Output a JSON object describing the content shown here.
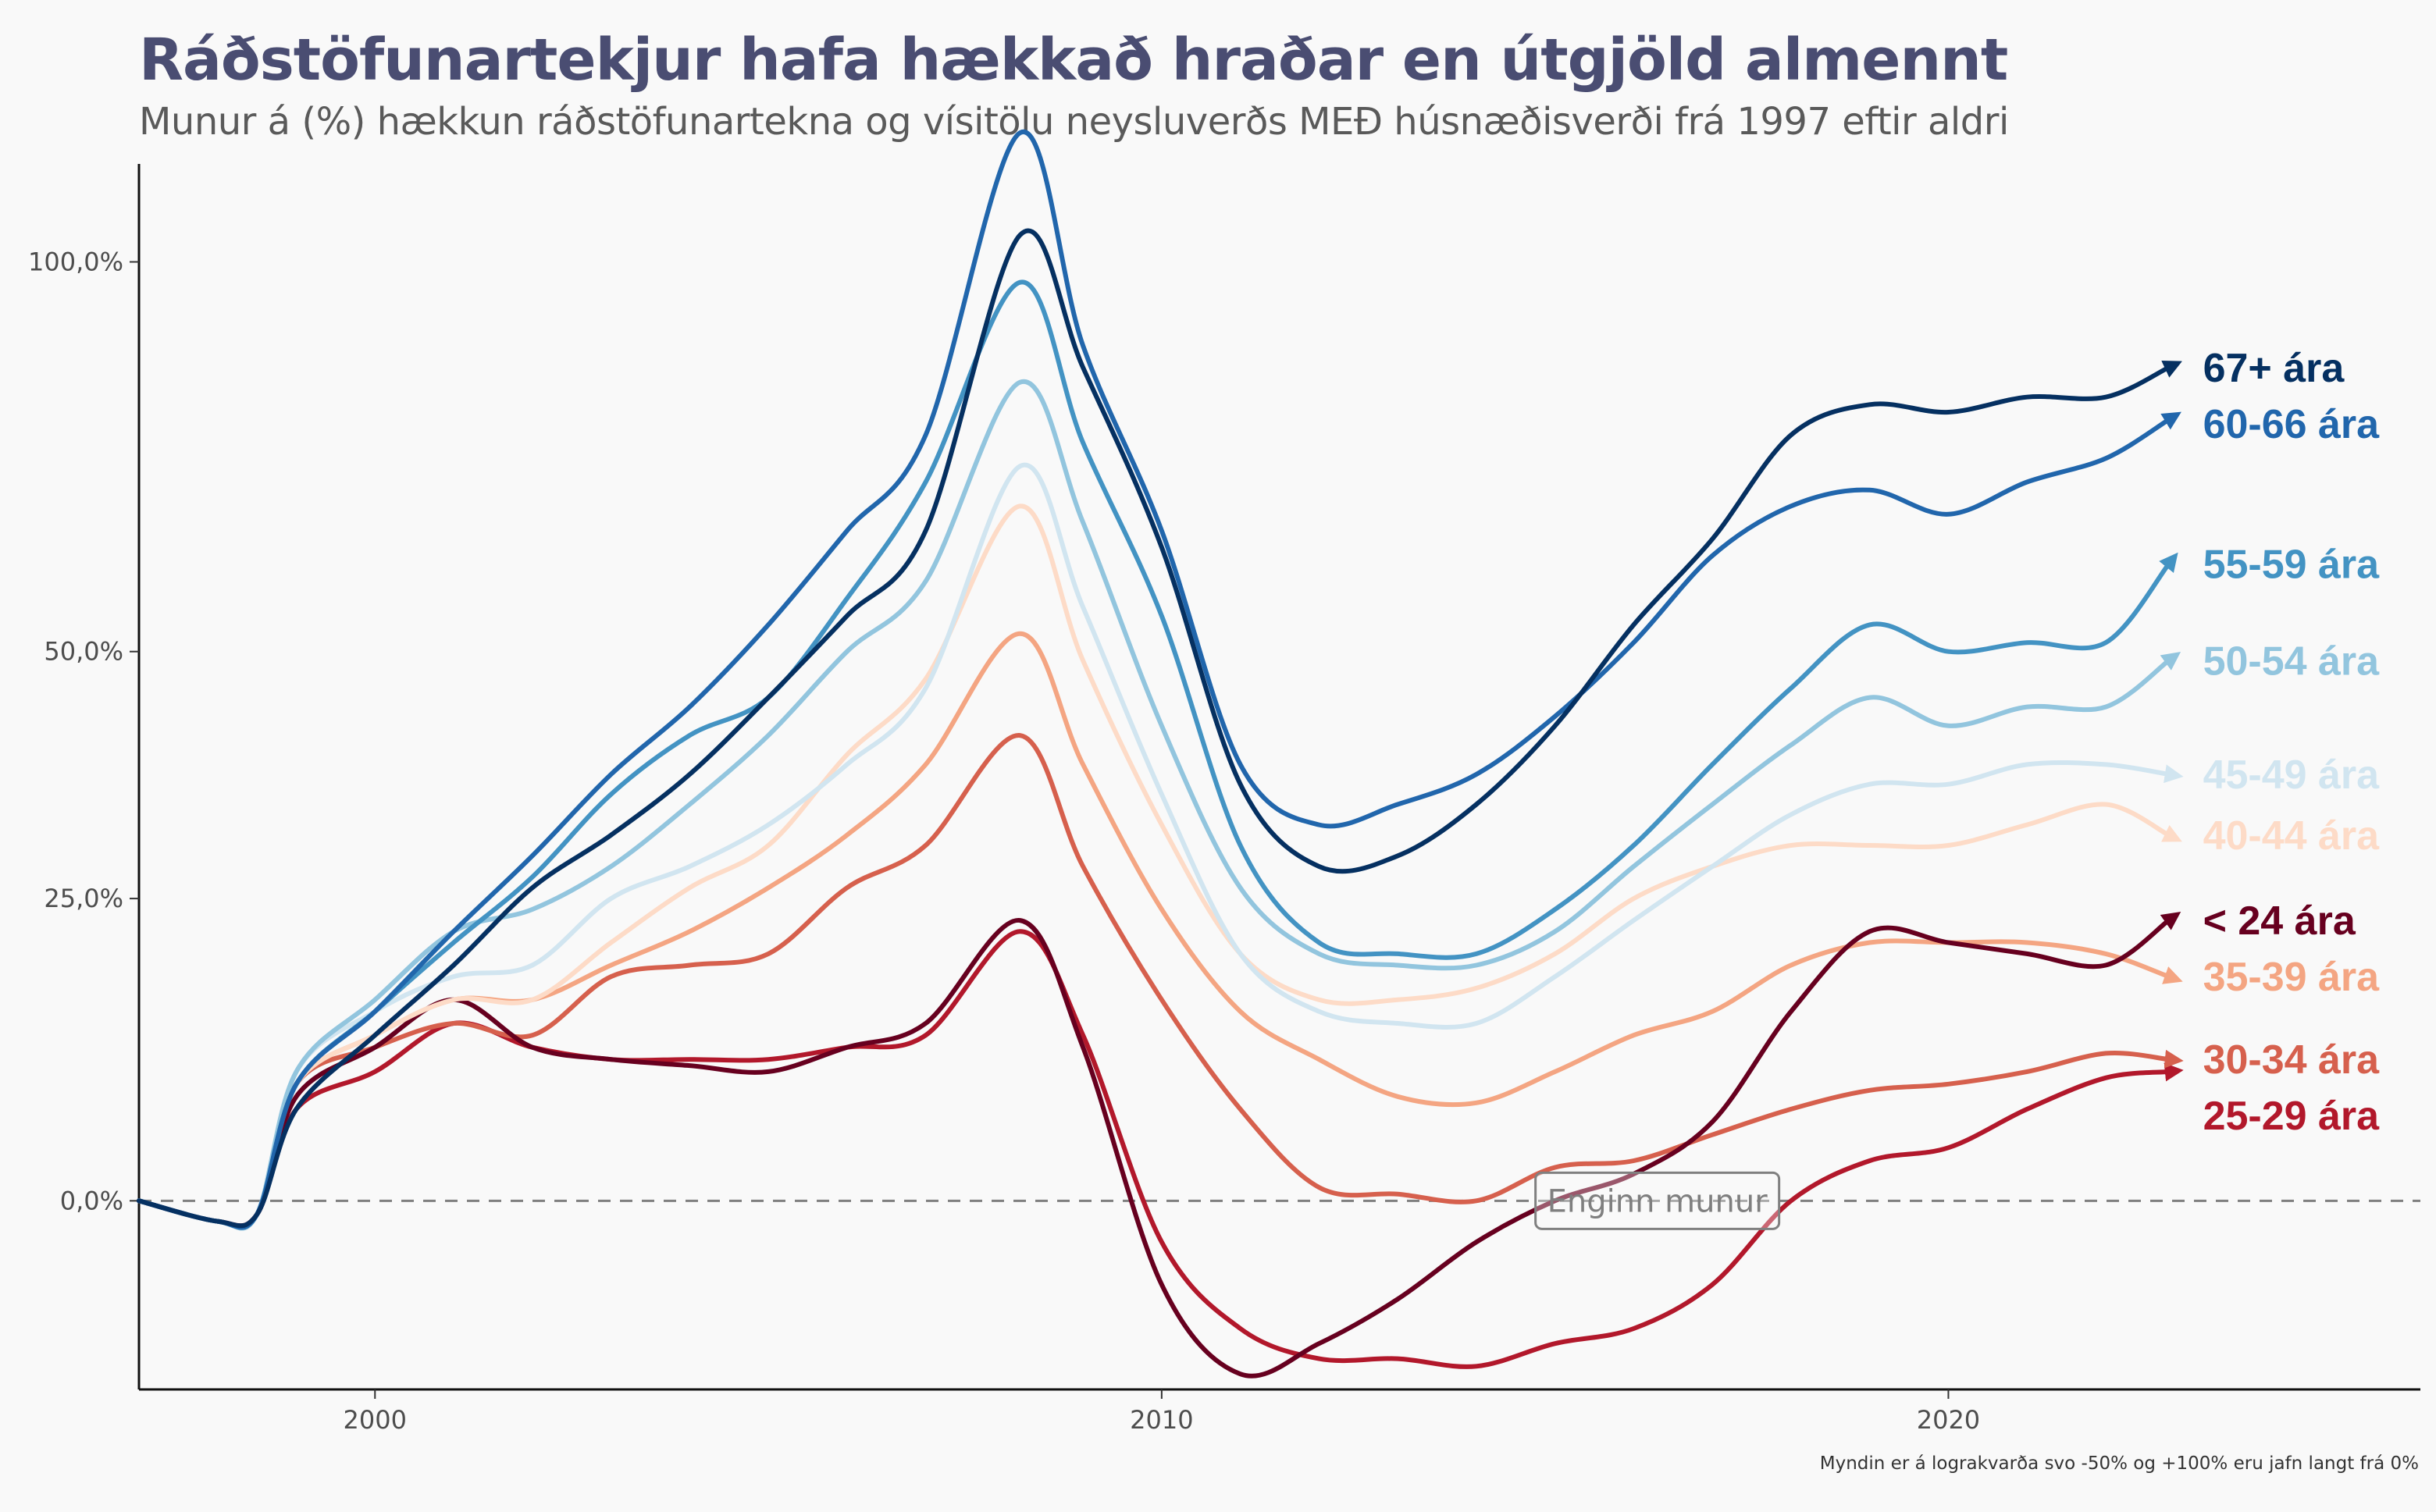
{
  "title": "Ráðstöfunartekjur hafa hækkað hraðar en útgjöld almennt",
  "subtitle": "Munur á (%) hækkun ráðstöfunartekna og vísitölu neysluverðs MEÐ húsnæðisverði frá 1997 eftir aldri",
  "caption": "Myndin er á lograkvarða svo -50% og +100% eru jafn langt frá 0%",
  "chart_data": {
    "type": "line",
    "title": "Ráðstöfunartekjur hafa hækkað hraðar en útgjöld almennt",
    "subtitle": "Munur á (%) hækkun ráðstöfunartekna og vísitölu neysluverðs MEÐ húsnæðisverði frá 1997 eftir aldri",
    "xlabel": "",
    "ylabel": "",
    "y_scale": "log",
    "xlim": [
      1997,
      2026
    ],
    "ylim": [
      -13,
      115
    ],
    "x_ticks": [
      2000,
      2010,
      2020
    ],
    "x_tick_labels": [
      "2000",
      "2010",
      "2020"
    ],
    "y_ticks": [
      0,
      25,
      50,
      100
    ],
    "y_tick_labels": [
      "0,0%",
      "25,0%",
      "50,0%",
      "100,0%"
    ],
    "grid": false,
    "legend": "direct labels at right end of lines",
    "reference_line": {
      "y": 0,
      "style": "dashed"
    },
    "annotation": {
      "text": "Enginn munur",
      "x": 2016.3,
      "y": 0
    },
    "x": [
      1997.0,
      1998.0,
      1998.5,
      1999.0,
      2000.0,
      2001.0,
      2002.0,
      2003.0,
      2004.0,
      2005.0,
      2006.0,
      2007.0,
      2008.2,
      2009.0,
      2010.0,
      2011.0,
      2012.0,
      2013.0,
      2014.0,
      2015.0,
      2016.0,
      2017.0,
      2018.0,
      2019.0,
      2020.0,
      2021.0,
      2022.0,
      2022.8
    ],
    "series": [
      {
        "name": "67+ ára",
        "color": "#053061",
        "values": [
          0,
          -1.5,
          -1,
          7,
          13,
          19,
          26,
          31,
          37,
          45,
          54,
          64,
          104,
          85,
          62,
          36,
          28,
          29,
          34,
          42,
          53,
          63,
          76,
          80,
          79,
          81,
          81,
          85
        ]
      },
      {
        "name": "60-66 ára",
        "color": "#2166ac",
        "values": [
          0,
          -1.5,
          -1,
          9,
          15,
          22,
          29,
          37,
          44,
          53,
          64,
          76,
          120,
          88,
          64,
          38,
          32,
          34,
          37,
          43,
          51,
          61,
          67,
          69,
          66,
          70,
          73,
          78
        ]
      },
      {
        "name": "55-59 ára",
        "color": "#4393c3",
        "values": [
          0,
          -1.5,
          -1,
          9,
          15,
          21,
          27,
          35,
          41,
          45,
          56,
          70,
          97,
          75,
          54,
          30,
          21,
          20,
          20,
          24,
          30,
          38,
          46,
          53,
          50,
          51,
          51,
          60
        ]
      },
      {
        "name": "50-54 ára",
        "color": "#92c5de",
        "values": [
          0,
          -1.5,
          -1,
          10,
          16,
          22,
          24,
          28,
          34,
          41,
          50,
          58,
          83,
          65,
          42,
          26,
          20,
          19,
          19,
          22,
          28,
          34,
          40,
          45,
          42,
          44,
          44,
          49
        ]
      },
      {
        "name": "45-49 ára",
        "color": "#d1e5f0",
        "values": [
          0,
          -1.5,
          -1,
          10,
          15,
          18,
          19,
          25,
          28,
          32,
          38,
          46,
          72,
          55,
          35,
          20,
          15,
          14,
          14,
          18,
          23,
          28,
          33,
          36,
          36,
          38,
          38,
          37
        ]
      },
      {
        "name": "40-44 ára",
        "color": "#fddbc7",
        "values": [
          0,
          -1.5,
          -1,
          9,
          13,
          16,
          16,
          21,
          26,
          30,
          39,
          47,
          67,
          49,
          32,
          20,
          16,
          16,
          17,
          20,
          25,
          28,
          30,
          30,
          30,
          32,
          34,
          31
        ]
      },
      {
        "name": "< 24 ára",
        "color": "#67001f",
        "values": [
          0,
          -1.5,
          -1,
          8,
          12,
          16,
          12,
          11,
          10.5,
          10,
          12,
          14,
          23,
          12,
          -6,
          -12,
          -10,
          -7,
          -3,
          0,
          2,
          6,
          15,
          22,
          21,
          20,
          19,
          23
        ]
      },
      {
        "name": "35-39 ára",
        "color": "#f4a582",
        "values": [
          0,
          -1.5,
          -1,
          9,
          13,
          16,
          16,
          19,
          22,
          26,
          31,
          38,
          52,
          38,
          24,
          15,
          11,
          8,
          7.5,
          10,
          13,
          15,
          19,
          21,
          21,
          21,
          20,
          18
        ]
      },
      {
        "name": "30-34 ára",
        "color": "#d6604d",
        "values": [
          0,
          -1.5,
          -1,
          9,
          12,
          14,
          13,
          18,
          19,
          20,
          26,
          30,
          41,
          28,
          16,
          7,
          1,
          0.5,
          0,
          2.5,
          3,
          5,
          7,
          8.5,
          9,
          10,
          11.5,
          11
        ]
      },
      {
        "name": "25-29 ára",
        "color": "#b2182b",
        "values": [
          0,
          -1.5,
          -1,
          7,
          10,
          14,
          12,
          11,
          11,
          11,
          12,
          13,
          22,
          13,
          -3,
          -9,
          -11,
          -11,
          -11.5,
          -10,
          -9,
          -6,
          0,
          3,
          4,
          7,
          9.5,
          10
        ]
      }
    ],
    "end_labels": [
      {
        "text": "67+ ára",
        "color": "#053061"
      },
      {
        "text": "60-66 ára",
        "color": "#2166ac"
      },
      {
        "text": "55-59 ára",
        "color": "#4393c3"
      },
      {
        "text": "50-54 ára",
        "color": "#92c5de"
      },
      {
        "text": "45-49 ára",
        "color": "#d1e5f0"
      },
      {
        "text": "40-44 ára",
        "color": "#fddbc7"
      },
      {
        "text": "< 24 ára",
        "color": "#67001f"
      },
      {
        "text": "35-39 ára",
        "color": "#f4a582"
      },
      {
        "text": "30-34 ára",
        "color": "#d6604d"
      },
      {
        "text": "25-29 ára",
        "color": "#b2182b"
      }
    ]
  }
}
